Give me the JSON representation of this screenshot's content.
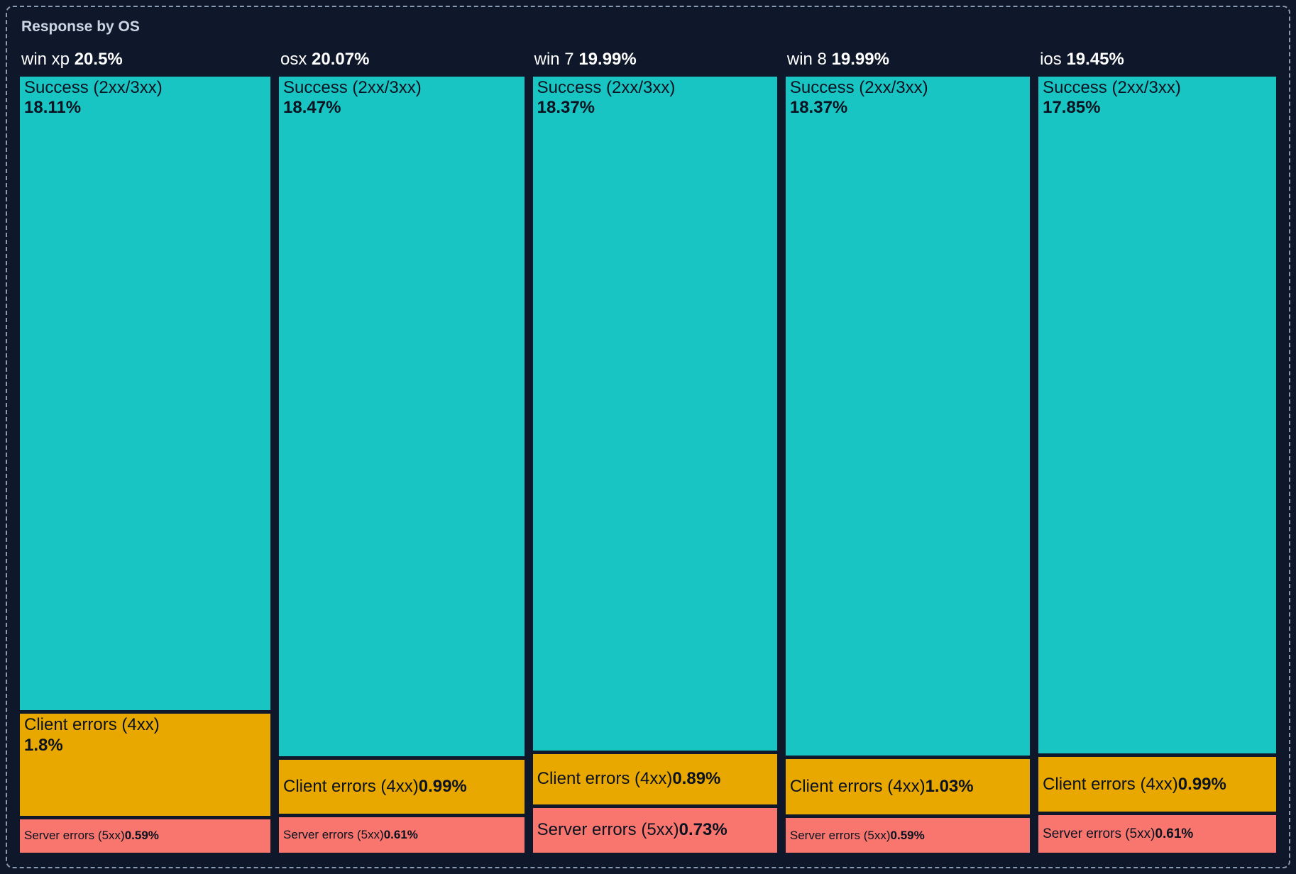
{
  "panel": {
    "title": "Response by OS"
  },
  "chart_data": {
    "type": "icicle",
    "title": "Response by OS",
    "orientation": "vertical-columns",
    "unit": "%",
    "legend": false,
    "colors": {
      "success": "#18c5c3",
      "client_errors": "#e9a800",
      "server_errors": "#f8766d",
      "background": "#0f172a",
      "segment_text": "#0b1220",
      "header_text": "#ffffff",
      "title_text": "#cbd5e1",
      "panel_border": "#8b9bb4"
    },
    "columns": [
      {
        "label": "win xp",
        "total": 20.5,
        "total_display": "20.5%",
        "segments": [
          {
            "kind": "success",
            "name": "Success (2xx/3xx)",
            "value": 18.11,
            "display": "18.11%"
          },
          {
            "kind": "client_errors",
            "name": "Client errors (4xx)",
            "value": 1.8,
            "display": "1.8%"
          },
          {
            "kind": "server_errors",
            "name": "Server errors (5xx)",
            "value": 0.59,
            "display": "0.59%"
          }
        ]
      },
      {
        "label": "osx",
        "total": 20.07,
        "total_display": "20.07%",
        "segments": [
          {
            "kind": "success",
            "name": "Success (2xx/3xx)",
            "value": 18.47,
            "display": "18.47%"
          },
          {
            "kind": "client_errors",
            "name": "Client errors (4xx)",
            "value": 0.99,
            "display": "0.99%"
          },
          {
            "kind": "server_errors",
            "name": "Server errors (5xx)",
            "value": 0.61,
            "display": "0.61%"
          }
        ]
      },
      {
        "label": "win 7",
        "total": 19.99,
        "total_display": "19.99%",
        "segments": [
          {
            "kind": "success",
            "name": "Success (2xx/3xx)",
            "value": 18.37,
            "display": "18.37%"
          },
          {
            "kind": "client_errors",
            "name": "Client errors (4xx)",
            "value": 0.89,
            "display": "0.89%"
          },
          {
            "kind": "server_errors",
            "name": "Server errors (5xx)",
            "value": 0.73,
            "display": "0.73%"
          }
        ]
      },
      {
        "label": "win 8",
        "total": 19.99,
        "total_display": "19.99%",
        "segments": [
          {
            "kind": "success",
            "name": "Success (2xx/3xx)",
            "value": 18.37,
            "display": "18.37%"
          },
          {
            "kind": "client_errors",
            "name": "Client errors (4xx)",
            "value": 1.03,
            "display": "1.03%"
          },
          {
            "kind": "server_errors",
            "name": "Server errors (5xx)",
            "value": 0.59,
            "display": "0.59%"
          }
        ]
      },
      {
        "label": "ios",
        "total": 19.45,
        "total_display": "19.45%",
        "segments": [
          {
            "kind": "success",
            "name": "Success (2xx/3xx)",
            "value": 17.85,
            "display": "17.85%"
          },
          {
            "kind": "client_errors",
            "name": "Client errors (4xx)",
            "value": 0.99,
            "display": "0.99%"
          },
          {
            "kind": "server_errors",
            "name": "Server errors (5xx)",
            "value": 0.61,
            "display": "0.61%"
          }
        ]
      }
    ]
  }
}
